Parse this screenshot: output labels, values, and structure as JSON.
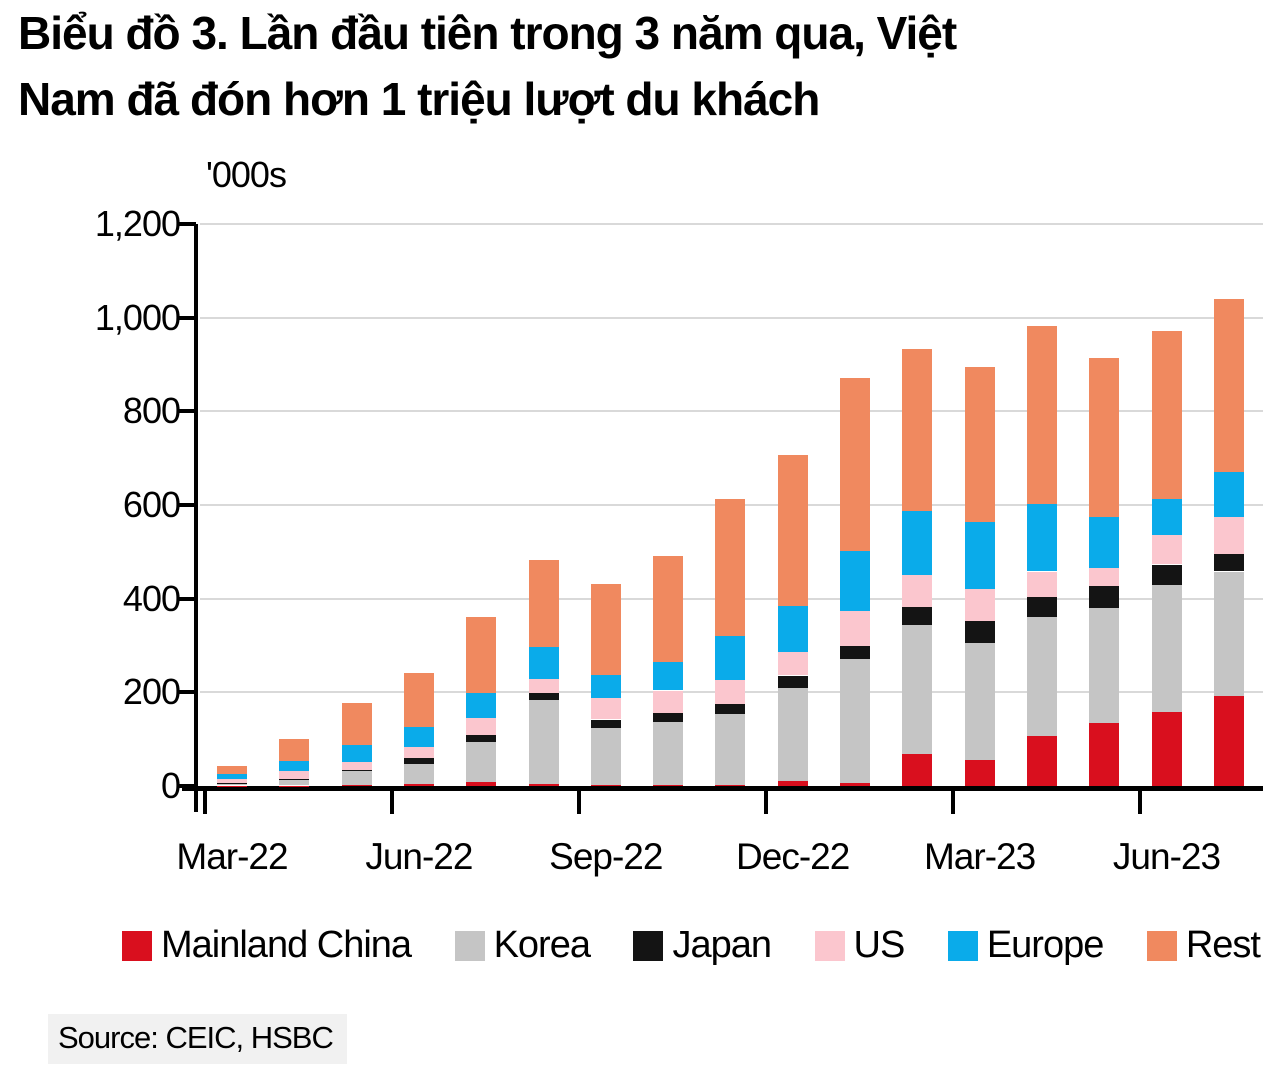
{
  "title": {
    "line1": "Biểu đồ 3. Lần đầu tiên trong 3 năm qua, Việt",
    "line2": "Nam đã đón hơn 1 triệu lượt du khách"
  },
  "source": {
    "text": "Source: CEIC, HSBC"
  },
  "chart_data": {
    "type": "bar",
    "stacked": true,
    "title": "Biểu đồ 3. Lần đầu tiên trong 3 năm qua, Việt Nam đã đón hơn 1 triệu lượt du khách",
    "unit_label": "'000s",
    "ylabel": "'000s",
    "xlabel": "",
    "ylim": [
      0,
      1200
    ],
    "ytick_values": [
      0,
      200,
      400,
      600,
      800,
      1000,
      1200
    ],
    "ytick_labels": [
      "0",
      "200",
      "400",
      "600",
      "800",
      "1,000",
      "1,200"
    ],
    "grid": true,
    "legend_position": "bottom",
    "x_tick_labels_visible": [
      "Mar-22",
      "Jun-22",
      "Sep-22",
      "Dec-22",
      "Mar-23",
      "Jun-23"
    ],
    "categories": [
      "Mar-22",
      "Apr-22",
      "May-22",
      "Jun-22",
      "Jul-22",
      "Aug-22",
      "Sep-22",
      "Oct-22",
      "Nov-22",
      "Dec-22",
      "Jan-23",
      "Feb-23",
      "Mar-23",
      "Apr-23",
      "May-23",
      "Jun-23",
      "Jul-23"
    ],
    "series": [
      {
        "name": "Mainland China",
        "color": "#d90f1e",
        "values": [
          1,
          1,
          2,
          5,
          8,
          5,
          2,
          2,
          2,
          10,
          6,
          68,
          55,
          106,
          134,
          158,
          192
        ]
      },
      {
        "name": "Korea",
        "color": "#c5c5c5",
        "values": [
          5,
          12,
          31,
          43,
          86,
          178,
          123,
          134,
          151,
          200,
          265,
          275,
          251,
          255,
          247,
          272,
          266
        ]
      },
      {
        "name": "Japan",
        "color": "#141414",
        "values": [
          1,
          2,
          2,
          11,
          15,
          16,
          17,
          20,
          22,
          26,
          28,
          39,
          47,
          42,
          47,
          43,
          38
        ]
      },
      {
        "name": "US",
        "color": "#fbc6ce",
        "values": [
          7,
          17,
          17,
          24,
          37,
          30,
          45,
          48,
          52,
          51,
          75,
          68,
          68,
          55,
          38,
          62,
          79
        ]
      },
      {
        "name": "Europe",
        "color": "#0aabea",
        "values": [
          12,
          22,
          35,
          43,
          52,
          67,
          50,
          60,
          93,
          98,
          128,
          137,
          143,
          144,
          109,
          78,
          95
        ]
      },
      {
        "name": "Rest",
        "color": "#f0895f",
        "values": [
          16,
          47,
          90,
          115,
          162,
          187,
          195,
          227,
          292,
          322,
          369,
          347,
          330,
          380,
          340,
          358,
          371
        ]
      }
    ],
    "totals": [
      42,
      101,
      177,
      241,
      360,
      483,
      432,
      491,
      612,
      707,
      871,
      934,
      894,
      982,
      915,
      971,
      1041
    ]
  }
}
